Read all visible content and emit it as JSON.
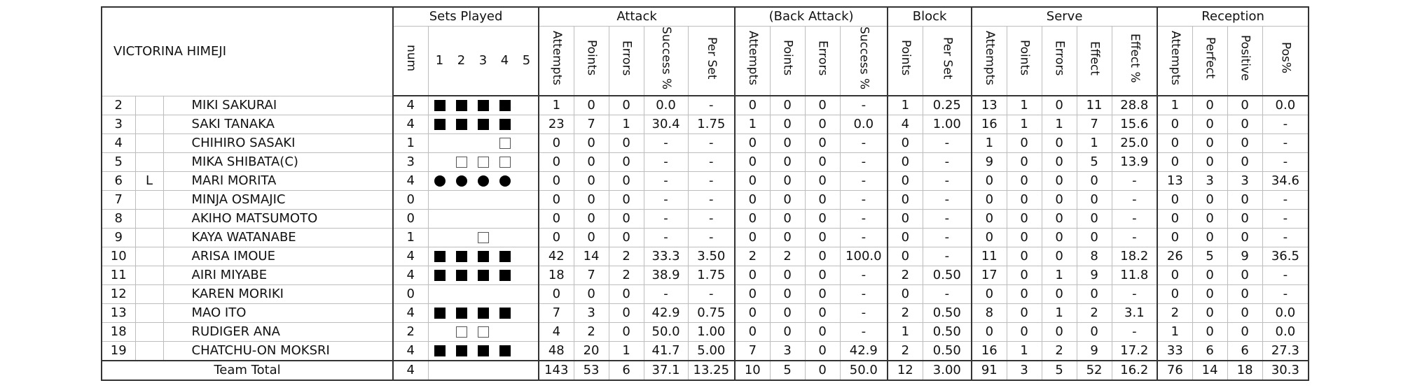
{
  "team_name": "VICTORINA HIMEJI",
  "groups": {
    "sets_played": "Sets Played",
    "attack": "Attack",
    "back_attack": "(Back Attack)",
    "block": "Block",
    "serve": "Serve",
    "reception": "Reception"
  },
  "sub_headers": {
    "num": "num",
    "set_numbers": [
      "1",
      "2",
      "3",
      "4",
      "5"
    ],
    "attack": [
      "Attempts",
      "Points",
      "Errors",
      "Success %",
      "Per Set"
    ],
    "back_attack": [
      "Attempts",
      "Points",
      "Errors",
      "Success %"
    ],
    "block": [
      "Points",
      "Per Set"
    ],
    "serve": [
      "Attempts",
      "Points",
      "Errors",
      "Effect",
      "Effect %"
    ],
    "reception": [
      "Attempts",
      "Perfect",
      "Positive",
      "Pos%"
    ]
  },
  "players": [
    {
      "no": "2",
      "role": "",
      "name": "MIKI  SAKURAI",
      "num": "4",
      "sets": [
        "full",
        "full",
        "full",
        "full",
        "none"
      ],
      "stats": [
        "1",
        "0",
        "0",
        "0.0",
        "-",
        "0",
        "0",
        "0",
        "-",
        "1",
        "0.25",
        "13",
        "1",
        "0",
        "11",
        "28.8",
        "1",
        "0",
        "0",
        "0.0"
      ]
    },
    {
      "no": "3",
      "role": "",
      "name": "SAKI  TANAKA",
      "num": "4",
      "sets": [
        "full",
        "full",
        "full",
        "full",
        "none"
      ],
      "stats": [
        "23",
        "7",
        "1",
        "30.4",
        "1.75",
        "1",
        "0",
        "0",
        "0.0",
        "4",
        "1.00",
        "16",
        "1",
        "1",
        "7",
        "15.6",
        "0",
        "0",
        "0",
        "-"
      ]
    },
    {
      "no": "4",
      "role": "",
      "name": "CHIHIRO  SASAKI",
      "num": "1",
      "sets": [
        "none",
        "none",
        "none",
        "sub",
        "none"
      ],
      "stats": [
        "0",
        "0",
        "0",
        "-",
        "-",
        "0",
        "0",
        "0",
        "-",
        "0",
        "-",
        "1",
        "0",
        "0",
        "1",
        "25.0",
        "0",
        "0",
        "0",
        "-"
      ]
    },
    {
      "no": "5",
      "role": "",
      "name": "MIKA  SHIBATA(C)",
      "num": "3",
      "sets": [
        "none",
        "sub",
        "sub",
        "sub",
        "none"
      ],
      "stats": [
        "0",
        "0",
        "0",
        "-",
        "-",
        "0",
        "0",
        "0",
        "-",
        "0",
        "-",
        "9",
        "0",
        "0",
        "5",
        "13.9",
        "0",
        "0",
        "0",
        "-"
      ]
    },
    {
      "no": "6",
      "role": "L",
      "name": "MARI  MORITA",
      "num": "4",
      "sets": [
        "lib",
        "lib",
        "lib",
        "lib",
        "none"
      ],
      "stats": [
        "0",
        "0",
        "0",
        "-",
        "-",
        "0",
        "0",
        "0",
        "-",
        "0",
        "-",
        "0",
        "0",
        "0",
        "0",
        "-",
        "13",
        "3",
        "3",
        "34.6"
      ]
    },
    {
      "no": "7",
      "role": "",
      "name": "MINJA  OSMAJIC",
      "num": "0",
      "sets": [
        "none",
        "none",
        "none",
        "none",
        "none"
      ],
      "stats": [
        "0",
        "0",
        "0",
        "-",
        "-",
        "0",
        "0",
        "0",
        "-",
        "0",
        "-",
        "0",
        "0",
        "0",
        "0",
        "-",
        "0",
        "0",
        "0",
        "-"
      ]
    },
    {
      "no": "8",
      "role": "",
      "name": "AKIHO  MATSUMOTO",
      "num": "0",
      "sets": [
        "none",
        "none",
        "none",
        "none",
        "none"
      ],
      "stats": [
        "0",
        "0",
        "0",
        "-",
        "-",
        "0",
        "0",
        "0",
        "-",
        "0",
        "-",
        "0",
        "0",
        "0",
        "0",
        "-",
        "0",
        "0",
        "0",
        "-"
      ]
    },
    {
      "no": "9",
      "role": "",
      "name": "KAYA  WATANABE",
      "num": "1",
      "sets": [
        "none",
        "none",
        "sub",
        "none",
        "none"
      ],
      "stats": [
        "0",
        "0",
        "0",
        "-",
        "-",
        "0",
        "0",
        "0",
        "-",
        "0",
        "-",
        "0",
        "0",
        "0",
        "0",
        "-",
        "0",
        "0",
        "0",
        "-"
      ]
    },
    {
      "no": "10",
      "role": "",
      "name": "ARISA  IMOUE",
      "num": "4",
      "sets": [
        "full",
        "full",
        "full",
        "full",
        "none"
      ],
      "stats": [
        "42",
        "14",
        "2",
        "33.3",
        "3.50",
        "2",
        "2",
        "0",
        "100.0",
        "0",
        "-",
        "11",
        "0",
        "0",
        "8",
        "18.2",
        "26",
        "5",
        "9",
        "36.5"
      ]
    },
    {
      "no": "11",
      "role": "",
      "name": "AIRI  MIYABE",
      "num": "4",
      "sets": [
        "full",
        "full",
        "full",
        "full",
        "none"
      ],
      "stats": [
        "18",
        "7",
        "2",
        "38.9",
        "1.75",
        "0",
        "0",
        "0",
        "-",
        "2",
        "0.50",
        "17",
        "0",
        "1",
        "9",
        "11.8",
        "0",
        "0",
        "0",
        "-"
      ]
    },
    {
      "no": "12",
      "role": "",
      "name": "KAREN  MORIKI",
      "num": "0",
      "sets": [
        "none",
        "none",
        "none",
        "none",
        "none"
      ],
      "stats": [
        "0",
        "0",
        "0",
        "-",
        "-",
        "0",
        "0",
        "0",
        "-",
        "0",
        "-",
        "0",
        "0",
        "0",
        "0",
        "-",
        "0",
        "0",
        "0",
        "-"
      ]
    },
    {
      "no": "13",
      "role": "",
      "name": "MAO  ITO",
      "num": "4",
      "sets": [
        "full",
        "full",
        "full",
        "full",
        "none"
      ],
      "stats": [
        "7",
        "3",
        "0",
        "42.9",
        "0.75",
        "0",
        "0",
        "0",
        "-",
        "2",
        "0.50",
        "8",
        "0",
        "1",
        "2",
        "3.1",
        "2",
        "0",
        "0",
        "0.0"
      ]
    },
    {
      "no": "18",
      "role": "",
      "name": "RUDIGER  ANA",
      "num": "2",
      "sets": [
        "none",
        "sub",
        "sub",
        "none",
        "none"
      ],
      "stats": [
        "4",
        "2",
        "0",
        "50.0",
        "1.00",
        "0",
        "0",
        "0",
        "-",
        "1",
        "0.50",
        "0",
        "0",
        "0",
        "0",
        "-",
        "1",
        "0",
        "0",
        "0.0"
      ]
    },
    {
      "no": "19",
      "role": "",
      "name": "CHATCHU-ON  MOKSRI",
      "num": "4",
      "sets": [
        "full",
        "full",
        "full",
        "full",
        "none"
      ],
      "stats": [
        "48",
        "20",
        "1",
        "41.7",
        "5.00",
        "7",
        "3",
        "0",
        "42.9",
        "2",
        "0.50",
        "16",
        "1",
        "2",
        "9",
        "17.2",
        "33",
        "6",
        "6",
        "27.3"
      ]
    }
  ],
  "total": {
    "label": "Team Total",
    "num": "4",
    "stats": [
      "143",
      "53",
      "6",
      "37.1",
      "13.25",
      "10",
      "5",
      "0",
      "50.0",
      "12",
      "3.00",
      "91",
      "3",
      "5",
      "52",
      "16.2",
      "76",
      "14",
      "18",
      "30.3"
    ]
  }
}
